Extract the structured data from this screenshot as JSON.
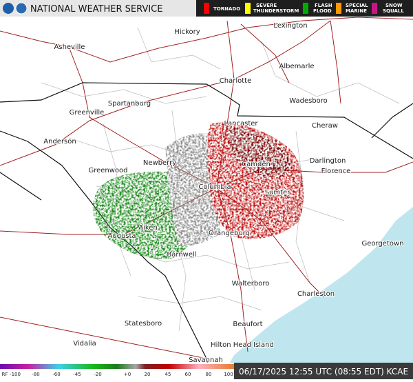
{
  "header": {
    "title": "NATIONAL WEATHER SERVICE"
  },
  "legend": [
    "TORNADO",
    [
      "SEVERE",
      "THUNDERSTORM"
    ],
    [
      "FLASH",
      "FLOOD"
    ],
    [
      "SPECIAL",
      "MARINE"
    ],
    [
      "SNOW",
      "SQUALL"
    ]
  ],
  "cities": [
    "Lexington",
    "Hickory",
    "Asheville",
    "Albemarle",
    "Charlotte",
    "Spartanburg",
    "Wadesboro",
    "Greenville",
    "Lancaster",
    "Cheraw",
    "Anderson",
    "Darlington",
    "Newberry",
    "Camden",
    "Florence",
    "Greenwood",
    "Columbia",
    "Sumter",
    "Aiken",
    "Orangeburg",
    "Augusta",
    "Georgetown",
    "Barnwell",
    "Walterboro",
    "Charleston",
    "Statesboro",
    "Beaufort",
    "Hilton Head Island",
    "Vidalia",
    "Savannah"
  ],
  "color_scale": {
    "labels": [
      "RF",
      "-100",
      "-80",
      "-60",
      "-45",
      "-20",
      "+0",
      "20",
      "45",
      "60",
      "80",
      "100"
    ]
  },
  "footer": {
    "timestamp": "06/17/2025 12:55 UTC (08:55 EDT) KCAE"
  }
}
